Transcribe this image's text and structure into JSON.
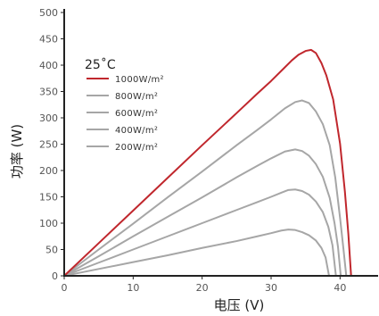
{
  "chart_data": {
    "type": "line",
    "xlabel": "电压 (V)",
    "ylabel": "功率 (W)",
    "xlim": [
      0,
      45
    ],
    "ylim": [
      0,
      500
    ],
    "x_ticks": [
      0,
      10,
      20,
      30,
      40
    ],
    "y_ticks": [
      0,
      50,
      100,
      150,
      200,
      250,
      300,
      350,
      400,
      450,
      500
    ],
    "grid": false,
    "legend_title": "25˚C",
    "legend_position": "top-left",
    "series": [
      {
        "name": "1000W/m²",
        "color": "#c0272d",
        "points": [
          [
            0,
            0
          ],
          [
            5,
            62
          ],
          [
            10,
            124
          ],
          [
            15,
            186
          ],
          [
            20,
            248
          ],
          [
            25,
            309
          ],
          [
            28,
            346
          ],
          [
            30,
            370
          ],
          [
            32,
            396
          ],
          [
            33,
            409
          ],
          [
            34,
            420
          ],
          [
            35,
            427
          ],
          [
            35.8,
            429
          ],
          [
            36.5,
            423
          ],
          [
            37.3,
            404
          ],
          [
            38,
            381
          ],
          [
            39,
            335
          ],
          [
            40,
            251
          ],
          [
            40.7,
            160
          ],
          [
            41.2,
            80
          ],
          [
            41.6,
            0
          ]
        ]
      },
      {
        "name": "800W/m²",
        "color": "#a6a6a6",
        "points": [
          [
            0,
            0
          ],
          [
            5,
            50
          ],
          [
            10,
            99
          ],
          [
            15,
            149
          ],
          [
            20,
            198
          ],
          [
            25,
            248
          ],
          [
            28,
            277
          ],
          [
            30,
            297
          ],
          [
            32,
            318
          ],
          [
            33.5,
            330
          ],
          [
            34.5,
            333
          ],
          [
            35.5,
            328
          ],
          [
            36.5,
            312
          ],
          [
            37.5,
            288
          ],
          [
            38.5,
            248
          ],
          [
            39.3,
            187
          ],
          [
            40,
            110
          ],
          [
            40.5,
            50
          ],
          [
            40.9,
            0
          ]
        ]
      },
      {
        "name": "600W/m²",
        "color": "#a6a6a6",
        "points": [
          [
            0,
            0
          ],
          [
            5,
            37
          ],
          [
            10,
            75
          ],
          [
            15,
            112
          ],
          [
            20,
            149
          ],
          [
            25,
            187
          ],
          [
            28,
            209
          ],
          [
            30,
            223
          ],
          [
            32,
            236
          ],
          [
            33.5,
            240
          ],
          [
            34.5,
            237
          ],
          [
            35.5,
            228
          ],
          [
            36.5,
            212
          ],
          [
            37.5,
            188
          ],
          [
            38.5,
            148
          ],
          [
            39.2,
            100
          ],
          [
            39.7,
            55
          ],
          [
            40.1,
            0
          ]
        ]
      },
      {
        "name": "400W/m²",
        "color": "#a6a6a6",
        "points": [
          [
            0,
            0
          ],
          [
            5,
            25
          ],
          [
            10,
            50
          ],
          [
            15,
            75
          ],
          [
            20,
            100
          ],
          [
            25,
            125
          ],
          [
            28,
            140
          ],
          [
            30,
            150
          ],
          [
            31.5,
            158
          ],
          [
            32.5,
            163
          ],
          [
            33.5,
            164
          ],
          [
            34.5,
            161
          ],
          [
            35.5,
            154
          ],
          [
            36.5,
            141
          ],
          [
            37.5,
            121
          ],
          [
            38.3,
            93
          ],
          [
            38.9,
            58
          ],
          [
            39.4,
            0
          ]
        ]
      },
      {
        "name": "200W/m²",
        "color": "#a6a6a6",
        "points": [
          [
            0,
            0
          ],
          [
            5,
            13
          ],
          [
            10,
            26
          ],
          [
            15,
            39
          ],
          [
            20,
            53
          ],
          [
            25,
            66
          ],
          [
            28,
            75
          ],
          [
            30,
            81
          ],
          [
            31.5,
            86
          ],
          [
            32.5,
            88
          ],
          [
            33.5,
            87
          ],
          [
            34.5,
            83
          ],
          [
            35.5,
            77
          ],
          [
            36.5,
            67
          ],
          [
            37.3,
            53
          ],
          [
            37.9,
            35
          ],
          [
            38.4,
            0
          ]
        ]
      }
    ]
  }
}
